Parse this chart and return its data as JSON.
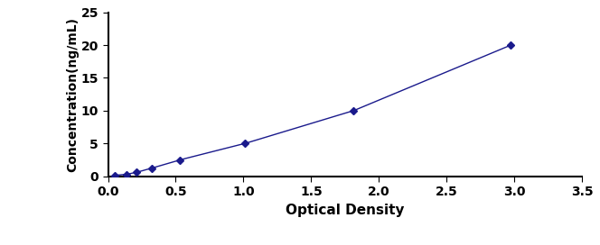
{
  "x_data": [
    0.047,
    0.136,
    0.212,
    0.322,
    0.528,
    1.009,
    1.812,
    2.975
  ],
  "y_data": [
    0.156,
    0.312,
    0.625,
    1.25,
    2.5,
    5.0,
    10.0,
    20.0
  ],
  "line_color": "#1a1a8c",
  "marker_color": "#1a1a8c",
  "marker_style": "D",
  "marker_size": 4,
  "line_width": 1.0,
  "xlabel": "Optical Density",
  "ylabel": "Concentration(ng/mL)",
  "xlim": [
    0,
    3.5
  ],
  "ylim": [
    0,
    25
  ],
  "xticks": [
    0,
    0.5,
    1.0,
    1.5,
    2.0,
    2.5,
    3.0,
    3.5
  ],
  "yticks": [
    0,
    5,
    10,
    15,
    20,
    25
  ],
  "xlabel_fontsize": 11,
  "ylabel_fontsize": 10,
  "tick_fontsize": 10,
  "tick_fontweight": "bold",
  "label_fontweight": "bold",
  "background_color": "#ffffff"
}
